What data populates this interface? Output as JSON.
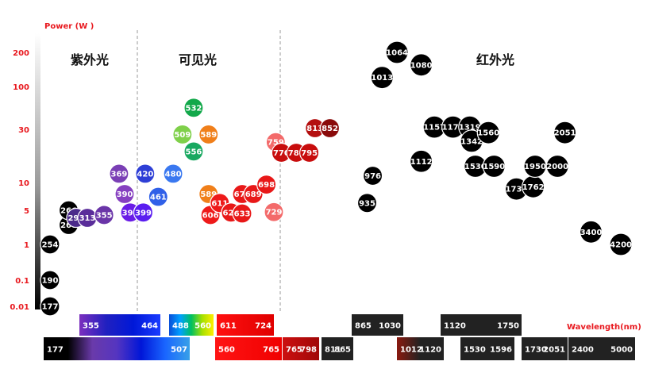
{
  "chart_data": {
    "type": "scatter",
    "ylabel": "Power (W )",
    "xlabel": "Wavelength(nm)",
    "y_scale": "custom",
    "y_ticks": [
      "0.01",
      "0.1",
      "1",
      "5",
      "10",
      "30",
      "100",
      "200"
    ],
    "regions": [
      {
        "name": "紫外光"
      },
      {
        "name": "可见光"
      },
      {
        "name": "红外光"
      }
    ],
    "points": [
      {
        "label": "177",
        "x": 0,
        "y": 0.01,
        "color": "#000000"
      },
      {
        "label": "190",
        "x": 0,
        "y": 0.1,
        "color": "#000000"
      },
      {
        "label": "254",
        "x": 0,
        "y": 1,
        "color": "#000000"
      },
      {
        "label": "266",
        "x": 1,
        "y": 2.5,
        "color": "#000000"
      },
      {
        "label": "266",
        "x": 1,
        "y": 5,
        "color": "#000000"
      },
      {
        "label": "297",
        "x": 1.4,
        "y": 3.5,
        "color": "#4b2a8a"
      },
      {
        "label": "313",
        "x": 2.0,
        "y": 3.5,
        "color": "#5a2d9a"
      },
      {
        "label": "355",
        "x": 2.9,
        "y": 4,
        "color": "#6a35a8"
      },
      {
        "label": "369",
        "x": 3.7,
        "y": 12,
        "color": "#7a3fb5"
      },
      {
        "label": "390",
        "x": 4.0,
        "y": 7.5,
        "color": "#8640c0"
      },
      {
        "label": "397",
        "x": 4.3,
        "y": 4.5,
        "color": "#6a1de6"
      },
      {
        "label": "399",
        "x": 5.0,
        "y": 4.5,
        "color": "#5a1ef0"
      },
      {
        "label": "420",
        "x": 5.1,
        "y": 12,
        "color": "#2e3fd6"
      },
      {
        "label": "461",
        "x": 5.8,
        "y": 7,
        "color": "#3060e8"
      },
      {
        "label": "480",
        "x": 6.6,
        "y": 12,
        "color": "#3a78f0"
      },
      {
        "label": "509",
        "x": 7.1,
        "y": 27,
        "color": "#7fd04a"
      },
      {
        "label": "532",
        "x": 7.7,
        "y": 55,
        "color": "#12a84a"
      },
      {
        "label": "556",
        "x": 7.7,
        "y": 19,
        "color": "#18a860"
      },
      {
        "label": "589",
        "x": 8.5,
        "y": 27,
        "color": "#f07f1a"
      },
      {
        "label": "589",
        "x": 8.5,
        "y": 7.5,
        "color": "#f07f1a"
      },
      {
        "label": "606",
        "x": 8.6,
        "y": 4,
        "color": "#ee1a1a"
      },
      {
        "label": "611",
        "x": 9.1,
        "y": 6,
        "color": "#ee1a1a"
      },
      {
        "label": "626",
        "x": 9.7,
        "y": 4.5,
        "color": "#e81818"
      },
      {
        "label": "633",
        "x": 10.3,
        "y": 4.3,
        "color": "#e81818"
      },
      {
        "label": "671",
        "x": 10.3,
        "y": 7.5,
        "color": "#e81818"
      },
      {
        "label": "689",
        "x": 10.9,
        "y": 7.5,
        "color": "#e81818"
      },
      {
        "label": "698",
        "x": 11.6,
        "y": 9.5,
        "color": "#e81818"
      },
      {
        "label": "729",
        "x": 12.0,
        "y": 4.6,
        "color": "#f36a6a"
      },
      {
        "label": "759",
        "x": 12.1,
        "y": 23,
        "color": "#f36a6a"
      },
      {
        "label": "770",
        "x": 12.4,
        "y": 18.5,
        "color": "#c80d0d"
      },
      {
        "label": "780",
        "x": 13.2,
        "y": 18.5,
        "color": "#c80d0d"
      },
      {
        "label": "795",
        "x": 13.9,
        "y": 18.5,
        "color": "#c80d0d"
      },
      {
        "label": "813",
        "x": 14.2,
        "y": 31,
        "color": "#b40f0f"
      },
      {
        "label": "852",
        "x": 15.0,
        "y": 31,
        "color": "#8a0b0b"
      },
      {
        "label": "935",
        "x": 17.0,
        "y": 6,
        "color": "#000000"
      },
      {
        "label": "976",
        "x": 17.3,
        "y": 11.5,
        "color": "#000000"
      },
      {
        "label": "1013",
        "x": 17.8,
        "y": 120,
        "color": "#000000"
      },
      {
        "label": "1064",
        "x": 18.6,
        "y": 200,
        "color": "#000000"
      },
      {
        "label": "1080",
        "x": 19.9,
        "y": 155,
        "color": "#000000"
      },
      {
        "label": "1112",
        "x": 19.9,
        "y": 15.5,
        "color": "#000000"
      },
      {
        "label": "1157",
        "x": 20.6,
        "y": 32,
        "color": "#000000"
      },
      {
        "label": "1178",
        "x": 21.6,
        "y": 32,
        "color": "#000000"
      },
      {
        "label": "1319",
        "x": 22.5,
        "y": 32,
        "color": "#000000"
      },
      {
        "label": "1342",
        "x": 22.6,
        "y": 23.5,
        "color": "#000000"
      },
      {
        "label": "1560",
        "x": 23.5,
        "y": 28,
        "color": "#000000"
      },
      {
        "label": "1530",
        "x": 22.8,
        "y": 14,
        "color": "#000000"
      },
      {
        "label": "1590",
        "x": 23.8,
        "y": 14,
        "color": "#000000"
      },
      {
        "label": "1730",
        "x": 25.0,
        "y": 8.5,
        "color": "#000000"
      },
      {
        "label": "1762",
        "x": 25.9,
        "y": 9,
        "color": "#000000"
      },
      {
        "label": "1950",
        "x": 26.0,
        "y": 14,
        "color": "#000000"
      },
      {
        "label": "2000",
        "x": 27.2,
        "y": 14,
        "color": "#000000"
      },
      {
        "label": "2051",
        "x": 27.6,
        "y": 28,
        "color": "#000000"
      },
      {
        "label": "3400",
        "x": 29.0,
        "y": 1.8,
        "color": "#000000"
      },
      {
        "label": "4200",
        "x": 30.6,
        "y": 1,
        "color": "#000000"
      }
    ],
    "bars_top": [
      {
        "from": "355",
        "to": "464",
        "colors": [
          "#7b2fbe",
          "#2020c0",
          "#0018d8",
          "#1a3cff"
        ]
      },
      {
        "from": "488",
        "to": "560",
        "colors": [
          "#0a4ed8",
          "#00a0ff",
          "#00c060",
          "#a8e000",
          "#ffee00"
        ]
      },
      {
        "from": "611",
        "to": "724",
        "colors": [
          "#ff1010",
          "#e00000"
        ]
      },
      {
        "from": "865",
        "to": "1030",
        "colors": [
          "#222222",
          "#222222"
        ]
      },
      {
        "from": "1120",
        "to": "1750",
        "colors": [
          "#222222",
          "#222222"
        ]
      }
    ],
    "bars_bottom": [
      {
        "from": "177",
        "to": "507",
        "colors": [
          "#000000",
          "#000000",
          "#6a3aaa",
          "#5535c0",
          "#0016d8",
          "#1a66ff",
          "#38a0e8"
        ]
      },
      {
        "from": "560",
        "to": "765",
        "colors": [
          "#ff1414",
          "#f00000"
        ]
      },
      {
        "from": "765",
        "to": "798",
        "colors": [
          "#cc1010",
          "#a00808"
        ]
      },
      {
        "from": "811",
        "to": "865",
        "colors": [
          "#222222",
          "#222222"
        ]
      },
      {
        "from": "1012",
        "to": "1120",
        "colors": [
          "#8a1a10",
          "#222222",
          "#222222"
        ]
      },
      {
        "from": "1530",
        "to": "1596",
        "colors": [
          "#222222",
          "#222222"
        ]
      },
      {
        "from": "1730",
        "to": "2051",
        "colors": [
          "#222222",
          "#222222"
        ]
      },
      {
        "from": "2400",
        "to": "5000",
        "colors": [
          "#222222",
          "#222222"
        ]
      }
    ]
  }
}
